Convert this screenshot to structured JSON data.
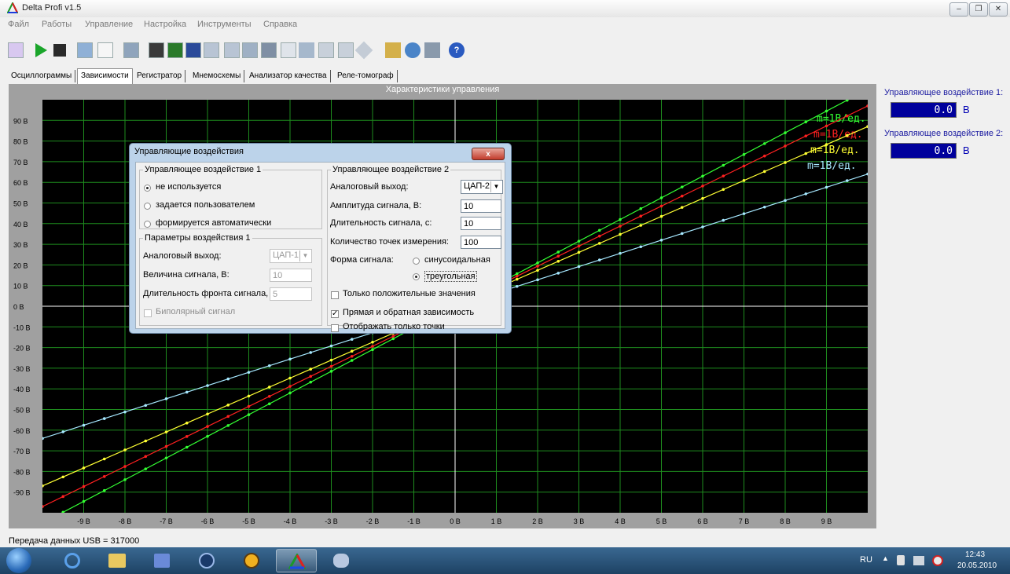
{
  "window": {
    "title": "Delta Profi v1.5"
  },
  "menu": [
    "Файл",
    "Работы",
    "Управление",
    "Настройка",
    "Инструменты",
    "Справка"
  ],
  "tabs": [
    {
      "label": "Осциллограммы",
      "active": false
    },
    {
      "label": "Зависимости",
      "active": true
    },
    {
      "label": "Регистратор",
      "active": false
    },
    {
      "label": "Мнемосхемы",
      "active": false
    },
    {
      "label": "Анализатор качества",
      "active": false
    },
    {
      "label": "Реле-томограф",
      "active": false
    }
  ],
  "chart": {
    "title": "Характеристики управления",
    "x_ticks": [
      "-9 В",
      "-8 В",
      "-7 В",
      "-6 В",
      "-5 В",
      "-4 В",
      "-3 В",
      "-2 В",
      "-1 В",
      "0 В",
      "1 В",
      "2 В",
      "3 В",
      "4 В",
      "5 В",
      "6 В",
      "7 В",
      "8 В",
      "9 В"
    ],
    "y_ticks": [
      "90 В",
      "80 В",
      "70 В",
      "60 В",
      "50 В",
      "40 В",
      "30 В",
      "20 В",
      "10 В",
      "0 В",
      "-10 В",
      "-20 В",
      "-30 В",
      "-40 В",
      "-50 В",
      "-60 В",
      "-70 В",
      "-80 В",
      "-90 В"
    ],
    "legend_label": "m=1В/ед.",
    "colors": {
      "background": "#000000",
      "grid": "#1e8c1e",
      "axis": "#ffffff",
      "green": "#33ff33",
      "red": "#ff2020",
      "yellow": "#ffff33",
      "cyan": "#a6e8ff"
    }
  },
  "chart_data": {
    "type": "line",
    "title": "Характеристики управления",
    "xlim": [
      -10,
      10
    ],
    "ylim": [
      -100,
      100
    ],
    "grid": true,
    "series": [
      {
        "name": "m=1В/ед.",
        "color": "#33ff33",
        "slope": 10.5
      },
      {
        "name": "m=1В/ед.",
        "color": "#ff2020",
        "slope": 9.7
      },
      {
        "name": "m=1В/ед.",
        "color": "#ffff33",
        "slope": 8.7
      },
      {
        "name": "m=1В/ед.",
        "color": "#a6e8ff",
        "slope": 6.4
      }
    ]
  },
  "right_panel": {
    "control1": {
      "label": "Управляющее воздействие 1:",
      "value": "0.0",
      "unit": "В"
    },
    "control2": {
      "label": "Управляющее воздействие 2:",
      "value": "0.0",
      "unit": "В"
    }
  },
  "status": {
    "text": "Передача данных USB = 317000"
  },
  "dialog": {
    "title": "Управляющие воздействия",
    "close_label": "x",
    "group1": {
      "legend": "Управляющее воздействие 1",
      "options": [
        {
          "label": "не используется",
          "checked": true
        },
        {
          "label": "задается пользователем",
          "checked": false
        },
        {
          "label": "формируется автоматически",
          "checked": false
        }
      ]
    },
    "params1": {
      "legend": "Параметры воздействия 1",
      "analog_label": "Аналоговый выход:",
      "analog_value": "ЦАП-1",
      "amp_label": "Величина сигнала, В:",
      "amp_value": "10",
      "front_label": "Длительность фронта сигнала, с:",
      "front_value": "5",
      "bipolar_label": "Биполярный сигнал"
    },
    "group2": {
      "legend": "Управляющее воздействие 2",
      "analog_label": "Аналоговый выход:",
      "analog_value": "ЦАП-2",
      "amp_label": "Амплитуда сигнала, В:",
      "amp_value": "10",
      "dur_label": "Длительность сигнала, с:",
      "dur_value": "10",
      "points_label": "Количество точек измерения:",
      "points_value": "100",
      "form_label": "Форма сигнала:",
      "form_options": [
        {
          "label": "синусоидальная",
          "checked": false
        },
        {
          "label": "треугольная",
          "checked": true
        }
      ],
      "chk_positive": {
        "label": "Только положительные значения",
        "checked": false
      },
      "chk_direct": {
        "label": "Прямая и обратная зависимость",
        "checked": true
      },
      "chk_points": {
        "label": "Отображать только точки",
        "checked": false
      }
    }
  },
  "taskbar": {
    "lang": "RU",
    "time": "12:43",
    "date": "20.05.2010"
  }
}
